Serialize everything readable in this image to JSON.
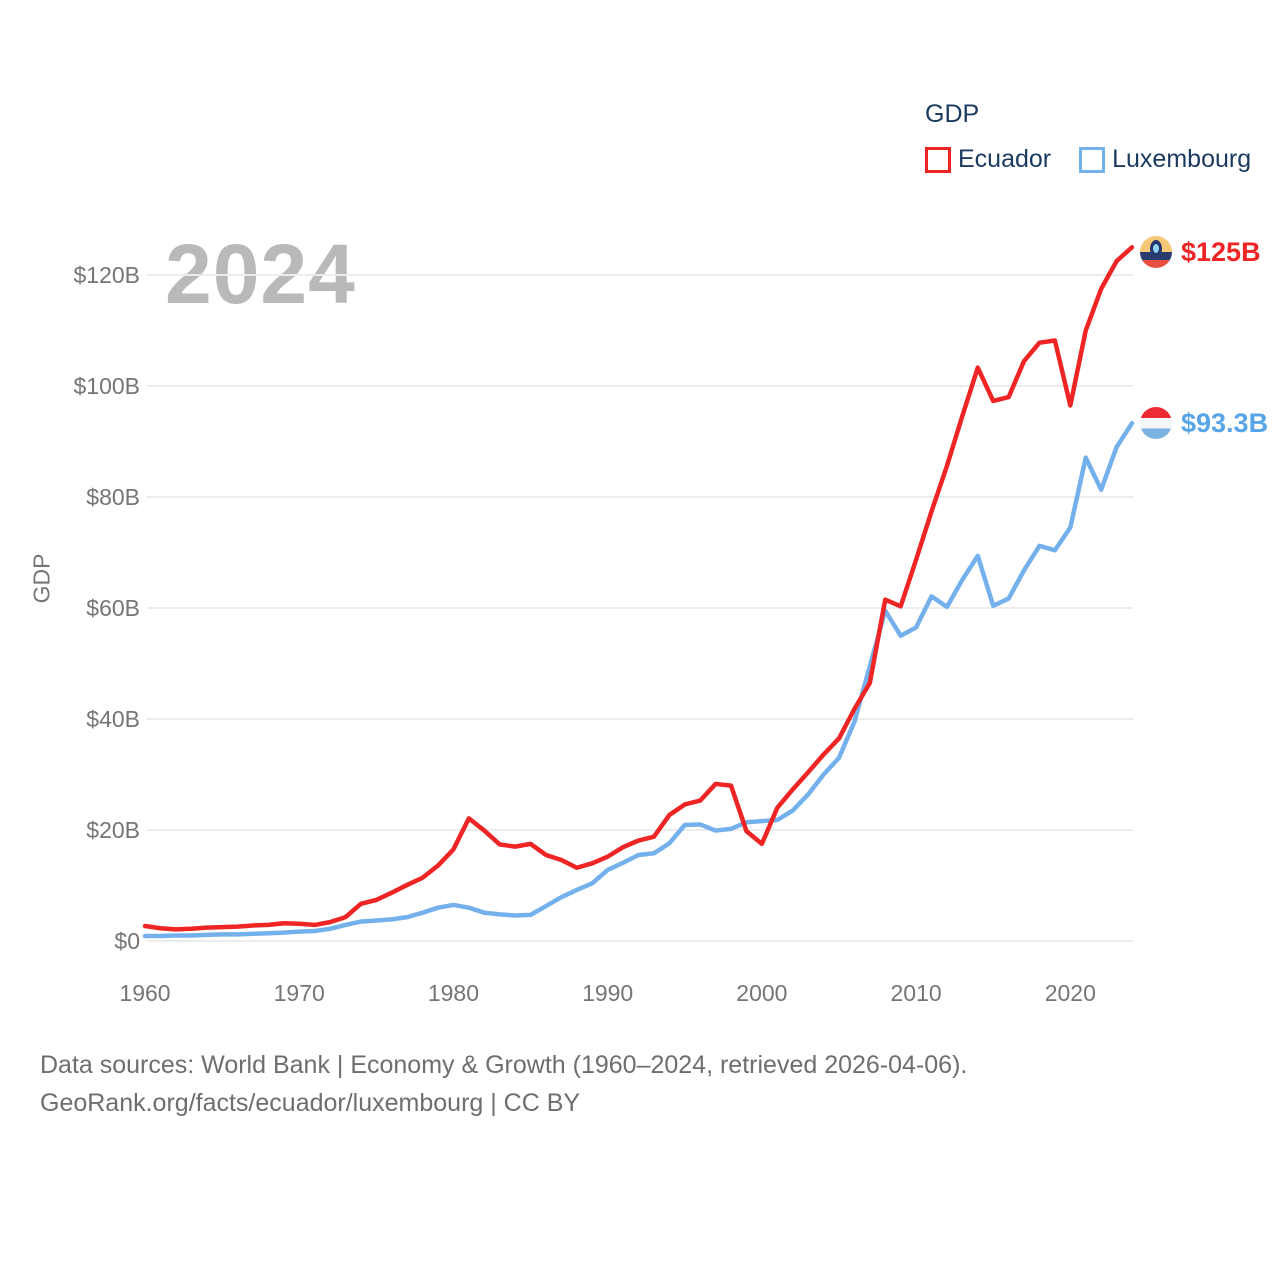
{
  "legend": {
    "title": "GDP",
    "series": [
      {
        "label": "Ecuador",
        "color": "#ee2524"
      },
      {
        "label": "Luxembourg",
        "color": "#74b1ec"
      }
    ]
  },
  "watermark": "2024",
  "end_labels": [
    {
      "series": "Ecuador",
      "value": "$125B",
      "flag": "ecuador-flag",
      "color": "#ee2524"
    },
    {
      "series": "Luxembourg",
      "value": "$93.3B",
      "flag": "luxembourg-flag",
      "color": "#57a5e8"
    }
  ],
  "footer": {
    "line1": "Data sources: World Bank | Economy & Growth (1960–2024, retrieved 2026-04-06).",
    "line2": "GeoRank.org/facts/ecuador/luxembourg | CC BY"
  },
  "chart_data": {
    "type": "line",
    "title": "GDP",
    "xlabel": "",
    "ylabel": "GDP",
    "grid": true,
    "legend_position": "top-right",
    "ylim": [
      0,
      130
    ],
    "xlim": [
      1960,
      2024
    ],
    "yticks": [
      {
        "value": 0,
        "label": "$0"
      },
      {
        "value": 20,
        "label": "$20B"
      },
      {
        "value": 40,
        "label": "$40B"
      },
      {
        "value": 60,
        "label": "$60B"
      },
      {
        "value": 80,
        "label": "$80B"
      },
      {
        "value": 100,
        "label": "$100B"
      },
      {
        "value": 120,
        "label": "$120B"
      }
    ],
    "xticks": [
      1960,
      1970,
      1980,
      1990,
      2000,
      2010,
      2020
    ],
    "x": [
      1960,
      1961,
      1962,
      1963,
      1964,
      1965,
      1966,
      1967,
      1968,
      1969,
      1970,
      1971,
      1972,
      1973,
      1974,
      1975,
      1976,
      1977,
      1978,
      1979,
      1980,
      1981,
      1982,
      1983,
      1984,
      1985,
      1986,
      1987,
      1988,
      1989,
      1990,
      1991,
      1992,
      1993,
      1994,
      1995,
      1996,
      1997,
      1998,
      1999,
      2000,
      2001,
      2002,
      2003,
      2004,
      2005,
      2006,
      2007,
      2008,
      2009,
      2010,
      2011,
      2012,
      2013,
      2014,
      2015,
      2016,
      2017,
      2018,
      2019,
      2020,
      2021,
      2022,
      2023,
      2024
    ],
    "series": [
      {
        "name": "Ecuador",
        "color": "#ee2524",
        "unit": "billion USD",
        "values": [
          2.7,
          2.3,
          2.1,
          2.2,
          2.4,
          2.5,
          2.6,
          2.8,
          2.9,
          3.2,
          3.1,
          2.9,
          3.4,
          4.3,
          6.7,
          7.4,
          8.7,
          10.1,
          11.4,
          13.6,
          16.5,
          22.1,
          19.9,
          17.4,
          17.0,
          17.5,
          15.5,
          14.6,
          13.2,
          14.0,
          15.2,
          16.9,
          18.1,
          18.8,
          22.7,
          24.6,
          25.3,
          28.3,
          28.0,
          19.8,
          17.5,
          24.0,
          27.3,
          30.4,
          33.6,
          36.5,
          41.8,
          46.5,
          61.5,
          60.3,
          68.7,
          77.4,
          85.6,
          94.6,
          103.3,
          97.3,
          98.0,
          104.5,
          107.8,
          108.2,
          96.5,
          110.0,
          117.5,
          122.5,
          125.0
        ]
      },
      {
        "name": "Luxembourg",
        "color": "#74b1ec",
        "unit": "billion USD",
        "values": [
          0.9,
          0.9,
          1.0,
          1.0,
          1.1,
          1.2,
          1.2,
          1.3,
          1.4,
          1.5,
          1.7,
          1.8,
          2.2,
          2.9,
          3.5,
          3.7,
          3.9,
          4.3,
          5.1,
          6.0,
          6.5,
          6.0,
          5.1,
          4.8,
          4.6,
          4.7,
          6.3,
          7.9,
          9.2,
          10.4,
          12.8,
          14.1,
          15.5,
          15.8,
          17.6,
          20.9,
          21.0,
          19.9,
          20.2,
          21.4,
          21.6,
          21.8,
          23.5,
          26.4,
          30.0,
          33.0,
          39.5,
          49.5,
          59.5,
          55.0,
          56.5,
          62.1,
          60.2,
          65.1,
          69.4,
          60.4,
          61.7,
          66.8,
          71.2,
          70.4,
          74.5,
          87.1,
          81.3,
          89.0,
          93.3
        ]
      }
    ]
  }
}
